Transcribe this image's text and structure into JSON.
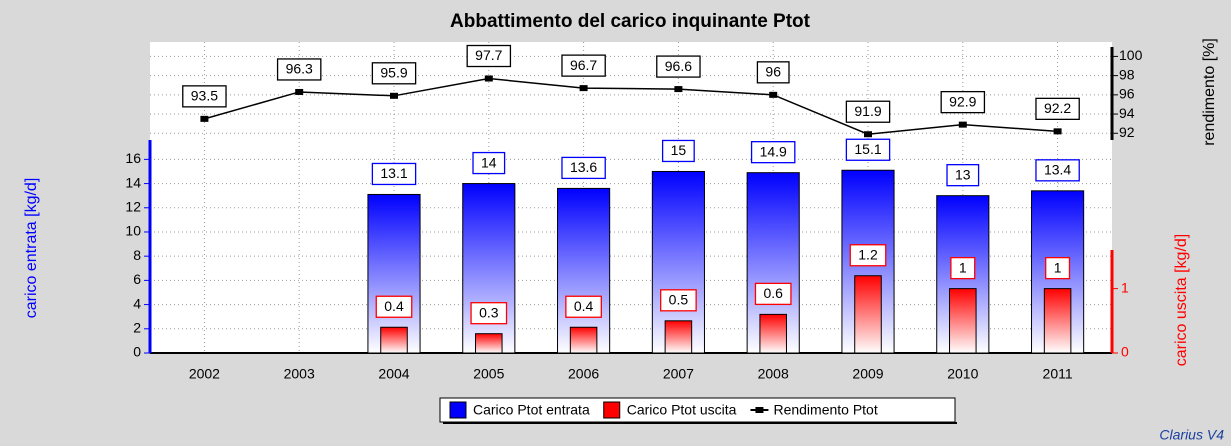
{
  "chart_data": {
    "type": "bar",
    "title": "Abbattimento del carico inquinante Ptot",
    "categories": [
      "2002",
      "2003",
      "2004",
      "2005",
      "2006",
      "2007",
      "2008",
      "2009",
      "2010",
      "2011"
    ],
    "series": [
      {
        "name": "Carico Ptot entrata",
        "color": "#0000ff",
        "axis": "y",
        "values": [
          null,
          null,
          13.1,
          14,
          13.6,
          15,
          14.9,
          15.1,
          13,
          13.4
        ]
      },
      {
        "name": "Carico Ptot uscita",
        "color": "#ff0000",
        "axis": "y2",
        "values": [
          null,
          null,
          0.4,
          0.3,
          0.4,
          0.5,
          0.6,
          1.2,
          1,
          1
        ]
      },
      {
        "name": "Rendimento Ptot",
        "type": "line",
        "color": "#000000",
        "axis": "y3",
        "values": [
          93.5,
          96.3,
          95.9,
          97.7,
          96.7,
          96.6,
          96,
          91.9,
          92.9,
          92.2
        ]
      }
    ],
    "ylabel": "carico entrata [kg/d]",
    "y2label": "carico uscita [kg/d]",
    "y3label": "rendimento [%]",
    "ylim": [
      0,
      17.6
    ],
    "yticks": [
      0,
      2,
      4,
      6,
      8,
      10,
      12,
      14,
      16
    ],
    "y2lim": [
      0,
      1.6
    ],
    "y2ticks": [
      0,
      1
    ],
    "y3lim": [
      91.3,
      101.5
    ],
    "y3ticks": [
      92,
      94,
      96,
      98,
      100
    ],
    "grid": true,
    "watermark": "Clarius V4"
  }
}
